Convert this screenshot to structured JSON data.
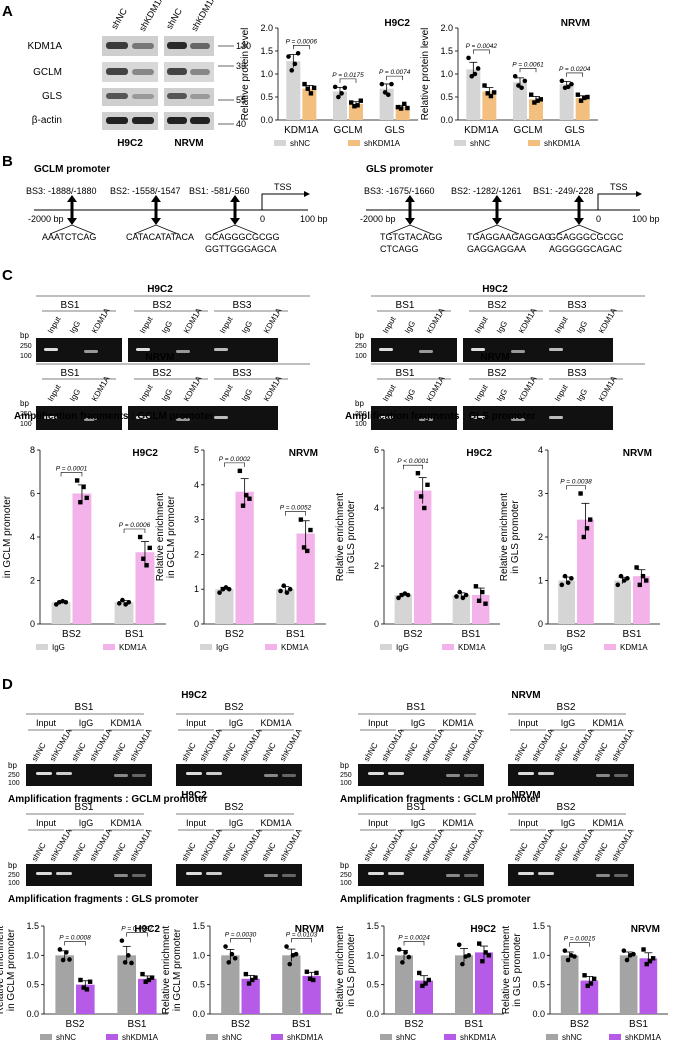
{
  "panels": {
    "A": "A",
    "B": "B",
    "C": "C",
    "D": "D"
  },
  "colors": {
    "gray": "#d5d5d5",
    "grayDark": "#a4a4a4",
    "orange": "#f2bf7e",
    "pink": "#f3b2ea",
    "purple": "#b65be8",
    "gel": "#111111"
  },
  "panelA": {
    "blot": {
      "col_labels": [
        "shNC",
        "shKDM1A",
        "shNC",
        "shKDM1A"
      ],
      "rows": [
        "KDM1A",
        "GCLM",
        "GLS",
        "β-actin"
      ],
      "markers": [
        "130",
        "33",
        "55",
        "40"
      ],
      "cells": [
        "H9C2",
        "NRVM"
      ]
    },
    "ylabel": "Relative protein level",
    "legend": [
      "shNC",
      "shKDM1A"
    ]
  },
  "panelB": {
    "gclm": {
      "title": "GCLM promoter",
      "sites": [
        "BS3: -1888/-1880",
        "BS2: -1558/-1547",
        "BS1: -581/-560"
      ],
      "tss": "TSS",
      "start": "-2000 bp",
      "zero": "0",
      "end": "100 bp",
      "seqs": [
        [
          "AAATCTCAG"
        ],
        [
          "CATACATATACA"
        ],
        [
          "GCAGGGCGCGG",
          "GGTTGGGAGCA"
        ]
      ]
    },
    "gls": {
      "title": "GLS promoter",
      "sites": [
        "BS3: -1675/-1660",
        "BS2: -1282/-1261",
        "BS1: -249/-228"
      ],
      "tss": "TSS",
      "start": "-2000 bp",
      "zero": "0",
      "end": "100 bp",
      "seqs": [
        [
          "TGTGTACAGG",
          "CTCAGG"
        ],
        [
          "TGAGGAAGAGGAG",
          "GAGGAGGAA"
        ],
        [
          "GGAGGGCGCGC",
          "AGGGGGCAGAC"
        ]
      ]
    }
  },
  "panelC": {
    "cells": [
      "H9C2",
      "NRVM"
    ],
    "bs": [
      "BS1",
      "BS2",
      "BS3"
    ],
    "lanes": [
      "Input",
      "IgG",
      "KDM1A"
    ],
    "bp": "bp",
    "ladder": [
      "250",
      "100"
    ],
    "caption_gclm": "Amplification fragments : GCLM promoter",
    "caption_gls": "Amplification fragments : GLS promoter",
    "legend": [
      "IgG",
      "KDM1A"
    ],
    "ylabel_gclm": [
      "Relative enrichment",
      "in GCLM promoter"
    ],
    "ylabel_gls": [
      "Relative enrichment",
      "in GLS promoter"
    ]
  },
  "panelD": {
    "cells": [
      "H9C2",
      "NRVM"
    ],
    "bs": [
      "BS1",
      "BS2"
    ],
    "groups": [
      "Input",
      "IgG",
      "KDM1A"
    ],
    "lanes": [
      "shNC",
      "shKDM1A"
    ],
    "bp": "bp",
    "ladder": [
      "250",
      "100"
    ],
    "caption_gclm": "Amplification fragments : GCLM promoter",
    "caption_gls": "Amplification fragments : GLS promoter",
    "legend": [
      "shNC",
      "shKDM1A"
    ],
    "ylabel_gclm": [
      "Relative enrichment",
      "in GCLM promoter"
    ],
    "ylabel_gls": [
      "Relative enrichment",
      "in GLS promoter"
    ]
  },
  "chart_data": [
    {
      "id": "A_H9C2",
      "type": "bar",
      "title": "H9C2",
      "ylabel": "Relative protein level",
      "ylim": [
        0,
        2.0
      ],
      "yticks": [
        0,
        0.5,
        1.0,
        1.5,
        2.0
      ],
      "categories": [
        "KDM1A",
        "GCLM",
        "GLS"
      ],
      "series": [
        {
          "name": "shNC",
          "values": [
            1.28,
            0.62,
            0.68
          ],
          "points": [
            [
              1.38,
              1.08,
              1.22,
              1.45
            ],
            [
              0.72,
              0.5,
              0.58,
              0.7
            ],
            [
              0.78,
              0.6,
              0.55,
              0.78
            ]
          ]
        },
        {
          "name": "shKDM1A",
          "values": [
            0.68,
            0.35,
            0.28
          ],
          "points": [
            [
              0.78,
              0.68,
              0.58,
              0.7
            ],
            [
              0.38,
              0.3,
              0.32,
              0.42
            ],
            [
              0.28,
              0.25,
              0.35,
              0.26
            ]
          ]
        }
      ],
      "pvalues": [
        {
          "cat": 0,
          "text": "P = 0.0006"
        },
        {
          "cat": 1,
          "text": "P = 0.0175"
        },
        {
          "cat": 2,
          "text": "P = 0.0074"
        }
      ]
    },
    {
      "id": "A_NRVM",
      "type": "bar",
      "title": "NRVM",
      "ylabel": "Relative protein level",
      "ylim": [
        0,
        2.0
      ],
      "yticks": [
        0,
        0.5,
        1.0,
        1.5,
        2.0
      ],
      "categories": [
        "KDM1A",
        "GCLM",
        "GLS"
      ],
      "series": [
        {
          "name": "shNC",
          "values": [
            1.1,
            0.82,
            0.78
          ],
          "points": [
            [
              1.35,
              0.95,
              1.0,
              1.12
            ],
            [
              0.95,
              0.75,
              0.7,
              0.85
            ],
            [
              0.85,
              0.7,
              0.72,
              0.78
            ]
          ]
        },
        {
          "name": "shKDM1A",
          "values": [
            0.62,
            0.45,
            0.48
          ],
          "points": [
            [
              0.75,
              0.58,
              0.52,
              0.6
            ],
            [
              0.55,
              0.38,
              0.42,
              0.45
            ],
            [
              0.55,
              0.42,
              0.48,
              0.5
            ]
          ]
        }
      ],
      "pvalues": [
        {
          "cat": 0,
          "text": "P = 0.0042"
        },
        {
          "cat": 1,
          "text": "P = 0.0061"
        },
        {
          "cat": 2,
          "text": "P = 0.0204"
        }
      ]
    },
    {
      "id": "C_GCLM_H9C2",
      "type": "bar",
      "title": "H9C2",
      "ylabel": "Relative enrichment in GCLM promoter",
      "ylim": [
        0,
        8
      ],
      "yticks": [
        0,
        2,
        4,
        6,
        8
      ],
      "categories": [
        "BS2",
        "BS1"
      ],
      "series": [
        {
          "name": "IgG",
          "values": [
            1.0,
            1.0
          ],
          "points": [
            [
              0.9,
              1.0,
              1.05,
              1.0
            ],
            [
              0.95,
              1.1,
              0.9,
              1.0
            ]
          ]
        },
        {
          "name": "KDM1A",
          "values": [
            6.0,
            3.3
          ],
          "points": [
            [
              6.6,
              5.6,
              6.3,
              5.8
            ],
            [
              4.0,
              3.0,
              2.7,
              3.5
            ]
          ]
        }
      ],
      "pvalues": [
        {
          "cat": 0,
          "text": "P = 0.0001"
        },
        {
          "cat": 1,
          "text": "P = 0.0006"
        }
      ]
    },
    {
      "id": "C_GCLM_NRVM",
      "type": "bar",
      "title": "NRVM",
      "ylabel": "Relative enrichment in GCLM promoter",
      "ylim": [
        0,
        5
      ],
      "yticks": [
        0,
        1,
        2,
        3,
        4,
        5
      ],
      "categories": [
        "BS2",
        "BS1"
      ],
      "series": [
        {
          "name": "IgG",
          "values": [
            1.0,
            1.0
          ],
          "points": [
            [
              0.9,
              1.0,
              1.05,
              1.0
            ],
            [
              0.95,
              1.1,
              0.9,
              1.0
            ]
          ]
        },
        {
          "name": "KDM1A",
          "values": [
            3.8,
            2.6
          ],
          "points": [
            [
              4.4,
              3.4,
              3.7,
              3.6
            ],
            [
              3.0,
              2.2,
              2.1,
              2.7
            ]
          ]
        }
      ],
      "pvalues": [
        {
          "cat": 0,
          "text": "P = 0.0002"
        },
        {
          "cat": 1,
          "text": "P = 0.0052"
        }
      ]
    },
    {
      "id": "C_GLS_H9C2",
      "type": "bar",
      "title": "H9C2",
      "ylabel": "Relative enrichment in GLS promoter",
      "ylim": [
        0,
        6
      ],
      "yticks": [
        0,
        2,
        4,
        6
      ],
      "categories": [
        "BS2",
        "BS1"
      ],
      "series": [
        {
          "name": "IgG",
          "values": [
            1.0,
            1.0
          ],
          "points": [
            [
              0.9,
              1.0,
              1.05,
              1.0
            ],
            [
              0.95,
              1.1,
              0.9,
              1.0
            ]
          ]
        },
        {
          "name": "KDM1A",
          "values": [
            4.6,
            1.0
          ],
          "points": [
            [
              5.2,
              4.4,
              4.0,
              4.8
            ],
            [
              1.3,
              0.8,
              1.1,
              0.7
            ]
          ]
        }
      ],
      "pvalues": [
        {
          "cat": 0,
          "text": "P < 0.0001"
        }
      ]
    },
    {
      "id": "C_GLS_NRVM",
      "type": "bar",
      "title": "NRVM",
      "ylabel": "Relative enrichment in GLS promoter",
      "ylim": [
        0,
        4
      ],
      "yticks": [
        0,
        1,
        2,
        3,
        4
      ],
      "categories": [
        "BS2",
        "BS1"
      ],
      "series": [
        {
          "name": "IgG",
          "values": [
            1.0,
            1.0
          ],
          "points": [
            [
              0.9,
              1.1,
              0.95,
              1.05
            ],
            [
              0.9,
              1.1,
              1.0,
              1.05
            ]
          ]
        },
        {
          "name": "KDM1A",
          "values": [
            2.4,
            1.1
          ],
          "points": [
            [
              3.0,
              2.0,
              2.2,
              2.4
            ],
            [
              1.3,
              0.9,
              1.1,
              1.0
            ]
          ]
        }
      ],
      "pvalues": [
        {
          "cat": 0,
          "text": "P = 0.0038"
        }
      ]
    },
    {
      "id": "D_GCLM_H9C2",
      "type": "bar",
      "title": "H9C2",
      "ylabel": "Relative enrichment in GCLM promoter",
      "ylim": [
        0,
        1.5
      ],
      "yticks": [
        0,
        0.5,
        1.0,
        1.5
      ],
      "categories": [
        "BS2",
        "BS1"
      ],
      "series": [
        {
          "name": "shNC",
          "values": [
            1.0,
            1.0
          ],
          "points": [
            [
              1.1,
              0.92,
              1.05,
              0.93
            ],
            [
              1.25,
              0.88,
              1.0,
              0.87
            ]
          ]
        },
        {
          "name": "shKDM1A",
          "values": [
            0.5,
            0.6
          ],
          "points": [
            [
              0.58,
              0.45,
              0.42,
              0.55
            ],
            [
              0.68,
              0.55,
              0.58,
              0.62
            ]
          ]
        }
      ],
      "pvalues": [
        {
          "cat": 0,
          "text": "P = 0.0008"
        },
        {
          "cat": 1,
          "text": "P = 0.0087"
        }
      ]
    },
    {
      "id": "D_GCLM_NRVM",
      "type": "bar",
      "title": "NRVM",
      "ylabel": "Relative enrichment in GCLM promoter",
      "ylim": [
        0,
        1.5
      ],
      "yticks": [
        0,
        0.5,
        1.0,
        1.5
      ],
      "categories": [
        "BS2",
        "BS1"
      ],
      "series": [
        {
          "name": "shNC",
          "values": [
            1.0,
            1.0
          ],
          "points": [
            [
              1.15,
              0.88,
              1.02,
              0.95
            ],
            [
              1.15,
              0.85,
              1.0,
              1.02
            ]
          ]
        },
        {
          "name": "shKDM1A",
          "values": [
            0.6,
            0.65
          ],
          "points": [
            [
              0.68,
              0.52,
              0.58,
              0.62
            ],
            [
              0.72,
              0.6,
              0.58,
              0.7
            ]
          ]
        }
      ],
      "pvalues": [
        {
          "cat": 0,
          "text": "P = 0.0030"
        },
        {
          "cat": 1,
          "text": "P = 0.0103"
        }
      ]
    },
    {
      "id": "D_GLS_H9C2",
      "type": "bar",
      "title": "H9C2",
      "ylabel": "Relative enrichment in GLS promoter",
      "ylim": [
        0,
        1.5
      ],
      "yticks": [
        0,
        0.5,
        1.0,
        1.5
      ],
      "categories": [
        "BS2",
        "BS1"
      ],
      "series": [
        {
          "name": "shNC",
          "values": [
            1.0,
            1.0
          ],
          "points": [
            [
              1.1,
              0.88,
              1.05,
              0.97
            ],
            [
              1.18,
              0.85,
              0.98,
              1.0
            ]
          ]
        },
        {
          "name": "shKDM1A",
          "values": [
            0.57,
            1.05
          ],
          "points": [
            [
              0.7,
              0.48,
              0.52,
              0.58
            ],
            [
              1.2,
              0.9,
              1.05,
              1.0
            ]
          ]
        }
      ],
      "pvalues": [
        {
          "cat": 0,
          "text": "P = 0.0024"
        }
      ]
    },
    {
      "id": "D_GLS_NRVM",
      "type": "bar",
      "title": "NRVM",
      "ylabel": "Relative enrichment in GLS promoter",
      "ylim": [
        0,
        1.5
      ],
      "yticks": [
        0,
        0.5,
        1.0,
        1.5
      ],
      "categories": [
        "BS2",
        "BS1"
      ],
      "series": [
        {
          "name": "shNC",
          "values": [
            1.0,
            1.0
          ],
          "points": [
            [
              1.08,
              0.92,
              1.0,
              0.98
            ],
            [
              1.08,
              0.92,
              1.0,
              1.02
            ]
          ]
        },
        {
          "name": "shKDM1A",
          "values": [
            0.57,
            0.95
          ],
          "points": [
            [
              0.66,
              0.48,
              0.52,
              0.6
            ],
            [
              1.1,
              0.85,
              0.9,
              0.95
            ]
          ]
        }
      ],
      "pvalues": [
        {
          "cat": 0,
          "text": "P = 0.0015"
        }
      ]
    }
  ]
}
